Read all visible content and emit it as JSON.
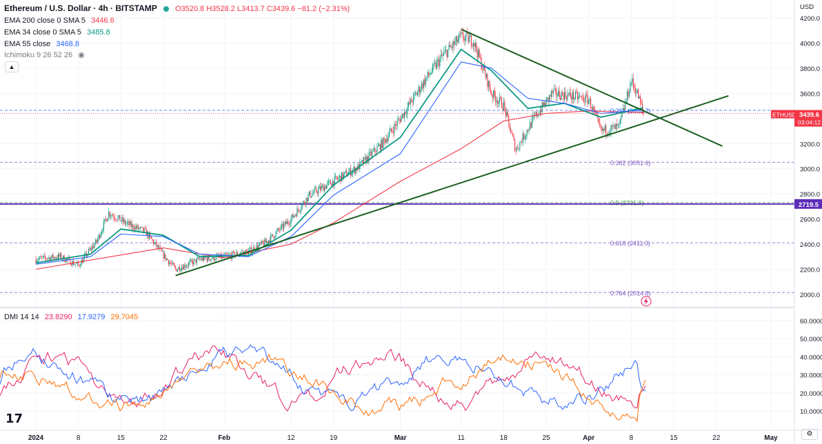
{
  "header": {
    "symbol_title": "Ethereum / U.S. Dollar · 4h · BITSTAMP",
    "ohlc": {
      "o": "O3520.8",
      "h": "H3528.2",
      "l": "L3413.7",
      "c": "C3439.6",
      "chg": "−81.2 (−2.31%)"
    }
  },
  "indicators": [
    {
      "label": "EMA 200 close 0 SMA 5",
      "value": "3446.6",
      "color": "#f23645"
    },
    {
      "label": "EMA 34 close 0 SMA 5",
      "value": "3485.8",
      "color": "#089981"
    },
    {
      "label": "EMA 55 close",
      "value": "3468.8",
      "color": "#2962ff"
    },
    {
      "label": "Ichimoku 9 26 52 26",
      "value": "",
      "color": "#787b86"
    }
  ],
  "icons": {
    "collapse": "chevron-up-icon",
    "visibility": "eye-hidden-icon",
    "lightning": "lightning-icon",
    "settings": "gear-icon"
  },
  "dmi_legend": {
    "label": "DMI 14 14",
    "v1": "23.8290",
    "v2": "17.9279",
    "v3": "29.7045",
    "c1": "#e91e63",
    "c2": "#2962ff",
    "c3": "#ff6d00"
  },
  "price_axis": {
    "currency": "USD",
    "ticks": [
      "4200.0",
      "4000.0",
      "3800.0",
      "3600.0",
      "3400.0",
      "3200.0",
      "3000.0",
      "2800.0",
      "2600.0",
      "2400.0",
      "2200.0",
      "2000.0"
    ],
    "tag_symbol": "ETHUSD",
    "tag_price": "3439.6",
    "tag_countdown": "03:04:12",
    "level_tag": "2719.5"
  },
  "dmi_axis": {
    "ticks": [
      "60.0000",
      "50.0000",
      "40.0000",
      "30.0000",
      "20.0000",
      "10.0000"
    ]
  },
  "time_axis": [
    "2024",
    "8",
    "15",
    "22",
    "Feb",
    "12",
    "19",
    "Mar",
    "11",
    "18",
    "25",
    "Apr",
    "8",
    "15",
    "22",
    "May"
  ],
  "logo": "17",
  "chart_data": [
    {
      "type": "line",
      "title": "Ethereum / U.S. Dollar · 4h · BITSTAMP",
      "y_unit": "USD",
      "ylim": [
        1900,
        4300
      ],
      "x": [
        "2024-01-01",
        "2024-01-08",
        "2024-01-15",
        "2024-01-22",
        "2024-02-01",
        "2024-02-12",
        "2024-02-19",
        "2024-03-01",
        "2024-03-11",
        "2024-03-18",
        "2024-03-25",
        "2024-04-01",
        "2024-04-08",
        "2024-04-15",
        "2024-04-22",
        "2024-05-01"
      ],
      "price_path": [
        [
          "2024-01-01",
          2280
        ],
        [
          "2024-01-05",
          2300
        ],
        [
          "2024-01-08",
          2230
        ],
        [
          "2024-01-11",
          2420
        ],
        [
          "2024-01-13",
          2650
        ],
        [
          "2024-01-16",
          2560
        ],
        [
          "2024-01-19",
          2500
        ],
        [
          "2024-01-22",
          2310
        ],
        [
          "2024-01-24",
          2200
        ],
        [
          "2024-01-28",
          2280
        ],
        [
          "2024-02-01",
          2300
        ],
        [
          "2024-02-05",
          2340
        ],
        [
          "2024-02-08",
          2420
        ],
        [
          "2024-02-12",
          2600
        ],
        [
          "2024-02-15",
          2790
        ],
        [
          "2024-02-19",
          2900
        ],
        [
          "2024-02-23",
          3010
        ],
        [
          "2024-02-27",
          3200
        ],
        [
          "2024-03-01",
          3400
        ],
        [
          "2024-03-05",
          3700
        ],
        [
          "2024-03-08",
          3900
        ],
        [
          "2024-03-11",
          4050
        ],
        [
          "2024-03-13",
          4020
        ],
        [
          "2024-03-16",
          3600
        ],
        [
          "2024-03-18",
          3500
        ],
        [
          "2024-03-20",
          3150
        ],
        [
          "2024-03-23",
          3400
        ],
        [
          "2024-03-26",
          3600
        ],
        [
          "2024-03-29",
          3580
        ],
        [
          "2024-04-01",
          3550
        ],
        [
          "2024-04-03",
          3300
        ],
        [
          "2024-04-06",
          3330
        ],
        [
          "2024-04-08",
          3700
        ],
        [
          "2024-04-09",
          3600
        ],
        [
          "2024-04-10",
          3439.6
        ]
      ],
      "series": [
        {
          "name": "EMA 200 close 0 SMA 5",
          "color": "#f23645",
          "points": [
            [
              "2024-01-01",
              2200
            ],
            [
              "2024-01-22",
              2370
            ],
            [
              "2024-02-01",
              2290
            ],
            [
              "2024-02-12",
              2400
            ],
            [
              "2024-02-19",
              2570
            ],
            [
              "2024-03-01",
              2900
            ],
            [
              "2024-03-11",
              3160
            ],
            [
              "2024-03-18",
              3380
            ],
            [
              "2024-03-25",
              3440
            ],
            [
              "2024-04-01",
              3460
            ],
            [
              "2024-04-10",
              3446.6
            ]
          ]
        },
        {
          "name": "EMA 34 close 0 SMA 5",
          "color": "#089981",
          "points": [
            [
              "2024-01-01",
              2250
            ],
            [
              "2024-01-10",
              2320
            ],
            [
              "2024-01-15",
              2520
            ],
            [
              "2024-01-22",
              2470
            ],
            [
              "2024-01-28",
              2300
            ],
            [
              "2024-02-05",
              2310
            ],
            [
              "2024-02-12",
              2510
            ],
            [
              "2024-02-19",
              2870
            ],
            [
              "2024-03-01",
              3250
            ],
            [
              "2024-03-11",
              3950
            ],
            [
              "2024-03-16",
              3780
            ],
            [
              "2024-03-22",
              3480
            ],
            [
              "2024-03-28",
              3520
            ],
            [
              "2024-04-03",
              3410
            ],
            [
              "2024-04-10",
              3485.8
            ]
          ]
        },
        {
          "name": "EMA 55 close",
          "color": "#2962ff",
          "points": [
            [
              "2024-01-01",
              2240
            ],
            [
              "2024-01-10",
              2300
            ],
            [
              "2024-01-15",
              2480
            ],
            [
              "2024-01-22",
              2460
            ],
            [
              "2024-01-28",
              2320
            ],
            [
              "2024-02-05",
              2300
            ],
            [
              "2024-02-12",
              2460
            ],
            [
              "2024-02-19",
              2790
            ],
            [
              "2024-03-01",
              3120
            ],
            [
              "2024-03-11",
              3850
            ],
            [
              "2024-03-16",
              3800
            ],
            [
              "2024-03-22",
              3560
            ],
            [
              "2024-03-28",
              3520
            ],
            [
              "2024-04-03",
              3440
            ],
            [
              "2024-04-10",
              3468.8
            ]
          ]
        }
      ],
      "trendlines": [
        {
          "name": "rising-support",
          "color": "#1b5e20",
          "from": [
            "2024-01-24",
            2150
          ],
          "to": [
            "2024-04-24",
            3580
          ]
        },
        {
          "name": "falling-resistance",
          "color": "#1b5e20",
          "from": [
            "2024-03-11",
            4110
          ],
          "to": [
            "2024-04-23",
            3180
          ]
        }
      ],
      "horizontal_level": {
        "value": 2719.5,
        "color": "#5c2db8"
      },
      "fibonacci": [
        {
          "label": "0.236 (3464.7)",
          "value": 3464.7,
          "color": "#2962ff"
        },
        {
          "label": "0.382 (3051.6)",
          "value": 3051.6,
          "color": "#7e57c2"
        },
        {
          "label": "0.5 (2731.3)",
          "value": 2731.3,
          "color": "#43a047"
        },
        {
          "label": "0.618 (2411.0)",
          "value": 2411.0,
          "color": "#7e57c2"
        },
        {
          "label": "0.764 (2014.8)",
          "value": 2014.8,
          "color": "#7e57c2"
        }
      ],
      "last_price": 3439.6
    },
    {
      "type": "line",
      "title": "DMI 14 14",
      "ylim": [
        0,
        65
      ],
      "series": [
        {
          "name": "+DI",
          "color": "#e91e63",
          "value": 23.829
        },
        {
          "name": "-DI",
          "color": "#2962ff",
          "value": 17.9279
        },
        {
          "name": "ADX",
          "color": "#ff6d00",
          "value": 29.7045
        }
      ]
    }
  ]
}
